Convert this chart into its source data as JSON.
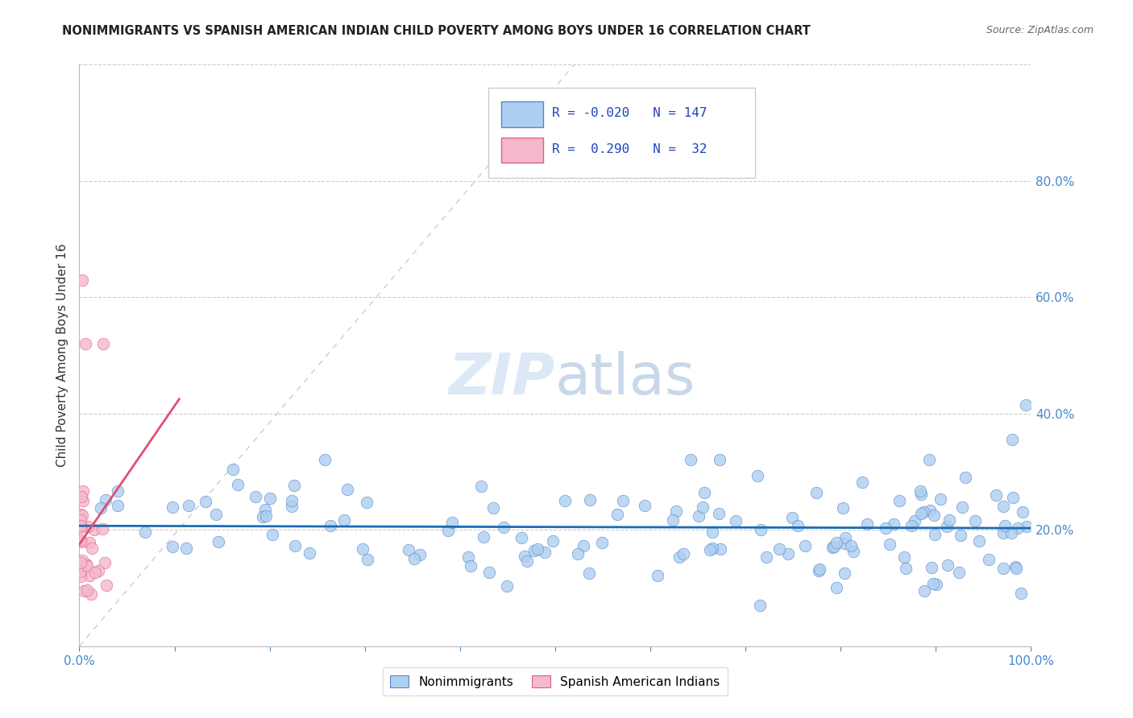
{
  "title": "NONIMMIGRANTS VS SPANISH AMERICAN INDIAN CHILD POVERTY AMONG BOYS UNDER 16 CORRELATION CHART",
  "source": "Source: ZipAtlas.com",
  "ylabel": "Child Poverty Among Boys Under 16",
  "r_nonimm": -0.02,
  "n_nonimm": 147,
  "r_spanish": 0.29,
  "n_spanish": 32,
  "xlim": [
    0,
    1.0
  ],
  "ylim": [
    0,
    1.0
  ],
  "color_nonimm": "#aecff0",
  "color_spanish": "#f5b8cc",
  "edge_nonimm": "#5588cc",
  "edge_spanish": "#e06080",
  "trend_nonimm_color": "#1a6bb5",
  "trend_spanish_color": "#e05070",
  "bg_color": "#ffffff",
  "grid_color": "#cccccc",
  "axis_color": "#4488cc",
  "legend_r_color": "#2244bb",
  "watermark_color": "#dce8f5"
}
